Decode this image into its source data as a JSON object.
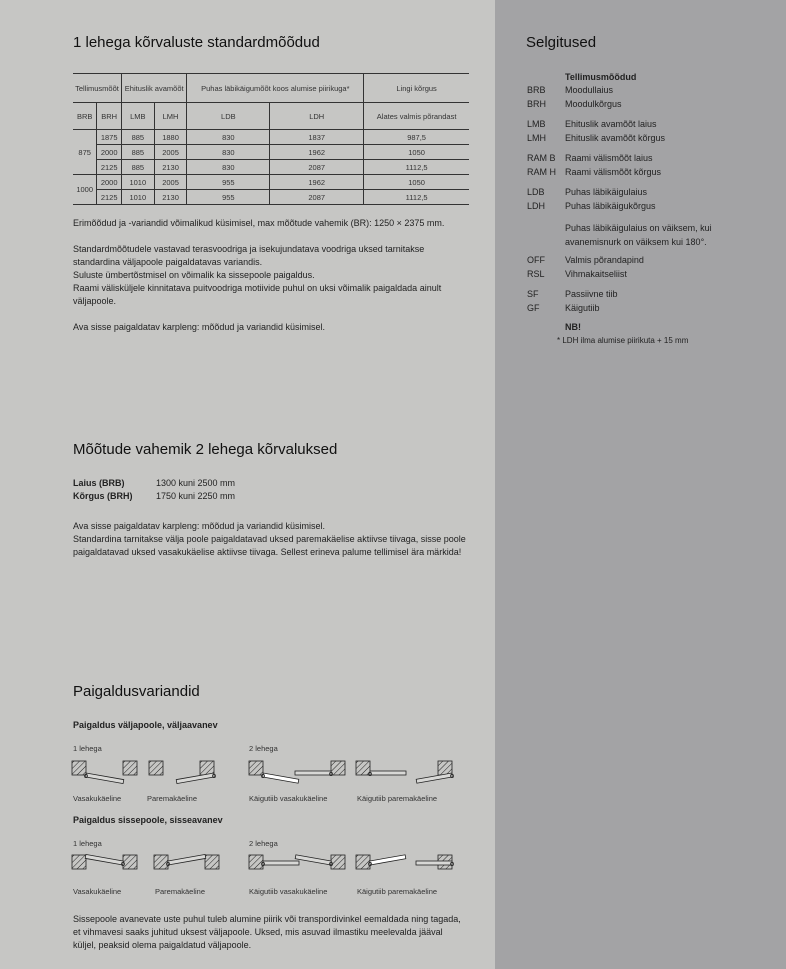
{
  "section1": {
    "title": "1 lehega kõrvaluste standardmõõdud",
    "table": {
      "group_headers": [
        "Tellimusmõõt",
        "Ehituslik avamõõt",
        "Puhas läbikäigumõõt koos alumise piirikuga*",
        "Lingi kõrgus"
      ],
      "columns": [
        "BRB",
        "BRH",
        "LMB",
        "LMH",
        "LDB",
        "LDH",
        "Alates valmis põrandast"
      ],
      "groups": [
        {
          "brb": "875",
          "rows": [
            [
              "1875",
              "885",
              "1880",
              "830",
              "1837",
              "987,5"
            ],
            [
              "2000",
              "885",
              "2005",
              "830",
              "1962",
              "1050"
            ],
            [
              "2125",
              "885",
              "2130",
              "830",
              "2087",
              "1112,5"
            ]
          ]
        },
        {
          "brb": "1000",
          "rows": [
            [
              "2000",
              "1010",
              "2005",
              "955",
              "1962",
              "1050"
            ],
            [
              "2125",
              "1010",
              "2130",
              "955",
              "2087",
              "1112,5"
            ]
          ]
        }
      ]
    },
    "paragraphs": [
      "Erimõõdud ja -variandid võimalikud küsimisel, max mõõtude vahemik (BR): 1250 × 2375 mm.",
      "Standardmõõtudele vastavad terasvoodriga ja isekujundatava voodriga uksed tarnitakse standardina väljapoole paigaldatavas variandis.",
      "Suluste ümbertõstmisel on võimalik ka sissepoole paigaldus.",
      "Raami välisküljele kinnitatava puitvoodriga motiivide puhul on uksi võimalik paigaldada ainult väljapoole.",
      "Ava sisse paigaldatav karpleng: mõõdud ja variandid küsimisel."
    ]
  },
  "section2": {
    "title": "Mõõtude vahemik 2 lehega kõrvaluksed",
    "specs": [
      {
        "label": "Laius (BRB)",
        "value": "1300 kuni 2500 mm"
      },
      {
        "label": "Kõrgus (BRH)",
        "value": "1750 kuni 2250 mm"
      }
    ],
    "paragraphs": [
      "Ava sisse paigaldatav karpleng: mõõdud ja variandid küsimisel.",
      "Standardina tarnitakse välja poole paigaldatavad uksed paremakäelise aktiivse tiivaga, sisse poole paigaldatavad uksed vasakukäelise aktiivse tiivaga. Sellest erineva palume tellimisel ära märkida!"
    ]
  },
  "section3": {
    "title": "Paigaldusvariandid",
    "outward": {
      "title": "Paigaldus väljapoole, väljaavanev",
      "one": "1 lehega",
      "two": "2 lehega",
      "captions": [
        "Vasakukäeline",
        "Paremakäeline",
        "Käigutiib vasakukäeline",
        "Käigutiib paremakäeline"
      ]
    },
    "inward": {
      "title": "Paigaldus sissepoole, sisseavanev",
      "one": "1 lehega",
      "two": "2 lehega",
      "captions": [
        "Vasakukäeline",
        "Paremakäeline",
        "Käigutiib vasakukäeline",
        "Käigutiib paremakäeline"
      ]
    },
    "note": "Sissepoole avanevate uste puhul tuleb alumine piirik või transpordivinkel eemaldada ning tagada, et vihmavesi saaks juhitud uksest väljapoole. Uksed, mis asuvad ilmastiku meelevalda jääval küljel, peaksid olema paigaldatud väljapoole."
  },
  "legend": {
    "title": "Selgitused",
    "heading": "Tellimusmõõdud",
    "items": [
      {
        "k": "BRB",
        "v": "Moodullaius"
      },
      {
        "k": "BRH",
        "v": "Moodulkõrgus"
      },
      {
        "k": "LMB",
        "v": "Ehituslik avamõõt laius"
      },
      {
        "k": "LMH",
        "v": "Ehituslik avamõõt kõrgus"
      },
      {
        "k": "RAM B",
        "v": "Raami välismõõt laius"
      },
      {
        "k": "RAM H",
        "v": "Raami välismõõt kõrgus"
      },
      {
        "k": "LDB",
        "v": "Puhas läbikäigulaius"
      },
      {
        "k": "LDH",
        "v": "Puhas läbikäigukõrgus"
      }
    ],
    "ldb_note": "Puhas läbikäigulaius on väiksem, kui avanemisnurk on väiksem kui 180°.",
    "items2": [
      {
        "k": "OFF",
        "v": "Valmis põrandapind"
      },
      {
        "k": "RSL",
        "v": "Vihmakaitseliist"
      },
      {
        "k": "SF",
        "v": "Passiivne tiib"
      },
      {
        "k": "GF",
        "v": "Käigutiib"
      }
    ],
    "nb": "NB!",
    "footnote": "* LDH ilma alumise piirikuta + 15 mm"
  },
  "colors": {
    "page": "#c6c6c4",
    "sidebar": "#a3a3a5"
  }
}
